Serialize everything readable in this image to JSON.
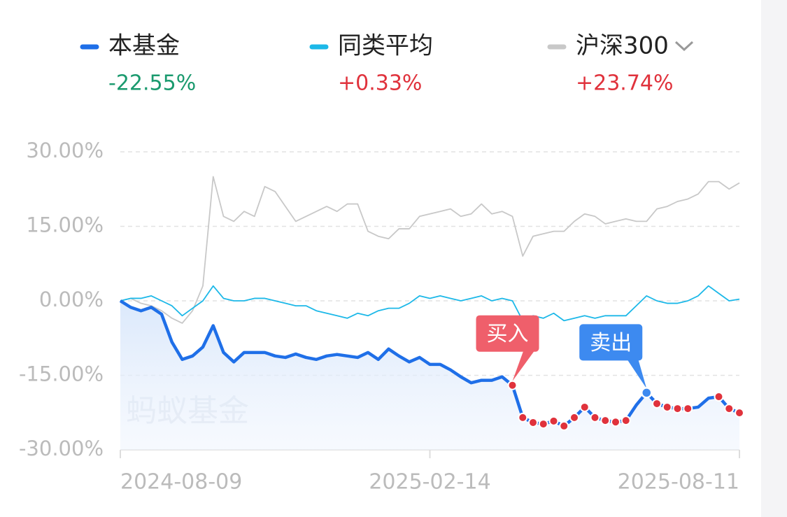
{
  "chart_data": {
    "type": "line",
    "series": [
      {
        "name": "本基金",
        "color": "#1f6fe8",
        "total": -22.55,
        "total_label": "-22.55%",
        "values": [
          0,
          -1.3,
          -2,
          -1.3,
          -2.7,
          -8.3,
          -11.8,
          -11.1,
          -9.3,
          -5,
          -10.4,
          -12.3,
          -10.4,
          -10.4,
          -10.4,
          -11.1,
          -11.4,
          -10.7,
          -11.4,
          -11.8,
          -11.1,
          -10.8,
          -11.1,
          -11.4,
          -10.4,
          -11.8,
          -9.7,
          -11.1,
          -12.3,
          -11.4,
          -12.8,
          -12.8,
          -13.9,
          -15.3,
          -16.5,
          -16,
          -16,
          -15.3,
          -17,
          -23.5,
          -24.5,
          -24.8,
          -24.2,
          -25.2,
          -23.5,
          -21.4,
          -23.5,
          -24.1,
          -24.4,
          -24.1,
          -21,
          -18.5,
          -20.7,
          -21.4,
          -21.7,
          -21.7,
          -21.4,
          -19.6,
          -19.3,
          -21.7,
          -22.55
        ]
      },
      {
        "name": "同类平均",
        "color": "#1cb8e8",
        "total": 0.33,
        "total_label": "+0.33%",
        "values": [
          0,
          0.5,
          0.5,
          1,
          0,
          -1,
          -3,
          -1.5,
          0,
          3,
          0.5,
          0,
          0,
          0.5,
          0.5,
          0,
          -0.5,
          -1,
          -1,
          -2,
          -2.5,
          -3,
          -3.5,
          -2.5,
          -3,
          -2,
          -1.5,
          -1.5,
          -0.5,
          1,
          0.5,
          1,
          0.5,
          0,
          0.5,
          1,
          0,
          0.5,
          0,
          -4,
          -3,
          -3.5,
          -2.5,
          -4,
          -3.5,
          -3,
          -3.5,
          -3,
          -3,
          -3,
          -1,
          1,
          0,
          -0.5,
          -0.5,
          0,
          1,
          3,
          1.5,
          0,
          0.33
        ]
      },
      {
        "name": "沪深300",
        "color": "#c8c8c8",
        "total": 23.74,
        "total_label": "+23.74%",
        "values": [
          0,
          0.5,
          -0.5,
          -1,
          -2,
          -3.5,
          -4.5,
          -2,
          3,
          25,
          17,
          16,
          18,
          17,
          23,
          22,
          19,
          16,
          17,
          18,
          19,
          18,
          19.5,
          19.5,
          14,
          13,
          12.5,
          14.5,
          14.5,
          17,
          17.5,
          18,
          18.5,
          17,
          17.5,
          19.5,
          17.5,
          18,
          17,
          9,
          13,
          13.5,
          14,
          14,
          16,
          17.5,
          17,
          15.5,
          16,
          16.5,
          16,
          16,
          18.5,
          19,
          20,
          20.5,
          21.5,
          24,
          24,
          22.5,
          23.74
        ]
      }
    ],
    "x": [
      "2024-08-09",
      null,
      null,
      null,
      null,
      null,
      null,
      null,
      null,
      null,
      null,
      null,
      null,
      null,
      null,
      null,
      null,
      null,
      null,
      null,
      null,
      null,
      null,
      null,
      null,
      null,
      null,
      null,
      null,
      null,
      "2025-02-14",
      null,
      null,
      null,
      null,
      null,
      null,
      null,
      null,
      null,
      null,
      null,
      null,
      null,
      null,
      null,
      null,
      null,
      null,
      null,
      null,
      null,
      null,
      null,
      null,
      null,
      null,
      null,
      null,
      null,
      "2025-08-11"
    ],
    "ylim": [
      -30,
      30
    ],
    "yticks": [
      {
        "value": 30,
        "label": "30.00%"
      },
      {
        "value": 15,
        "label": "15.00%"
      },
      {
        "value": 0,
        "label": "0.00%"
      },
      {
        "value": -15,
        "label": "-15.00%"
      },
      {
        "value": -30,
        "label": "-30.00%"
      }
    ],
    "grid": true,
    "watermark": "蚂蚁基金",
    "dot_color": "#e0323c",
    "dot_ranges": [
      [
        38,
        49
      ],
      [
        52,
        55
      ],
      [
        58,
        60
      ]
    ],
    "annotations": [
      {
        "label": "买入",
        "index": 38,
        "color": "#ef5f6b"
      },
      {
        "label": "卖出",
        "index": 51,
        "color": "#3d8af0"
      }
    ]
  }
}
